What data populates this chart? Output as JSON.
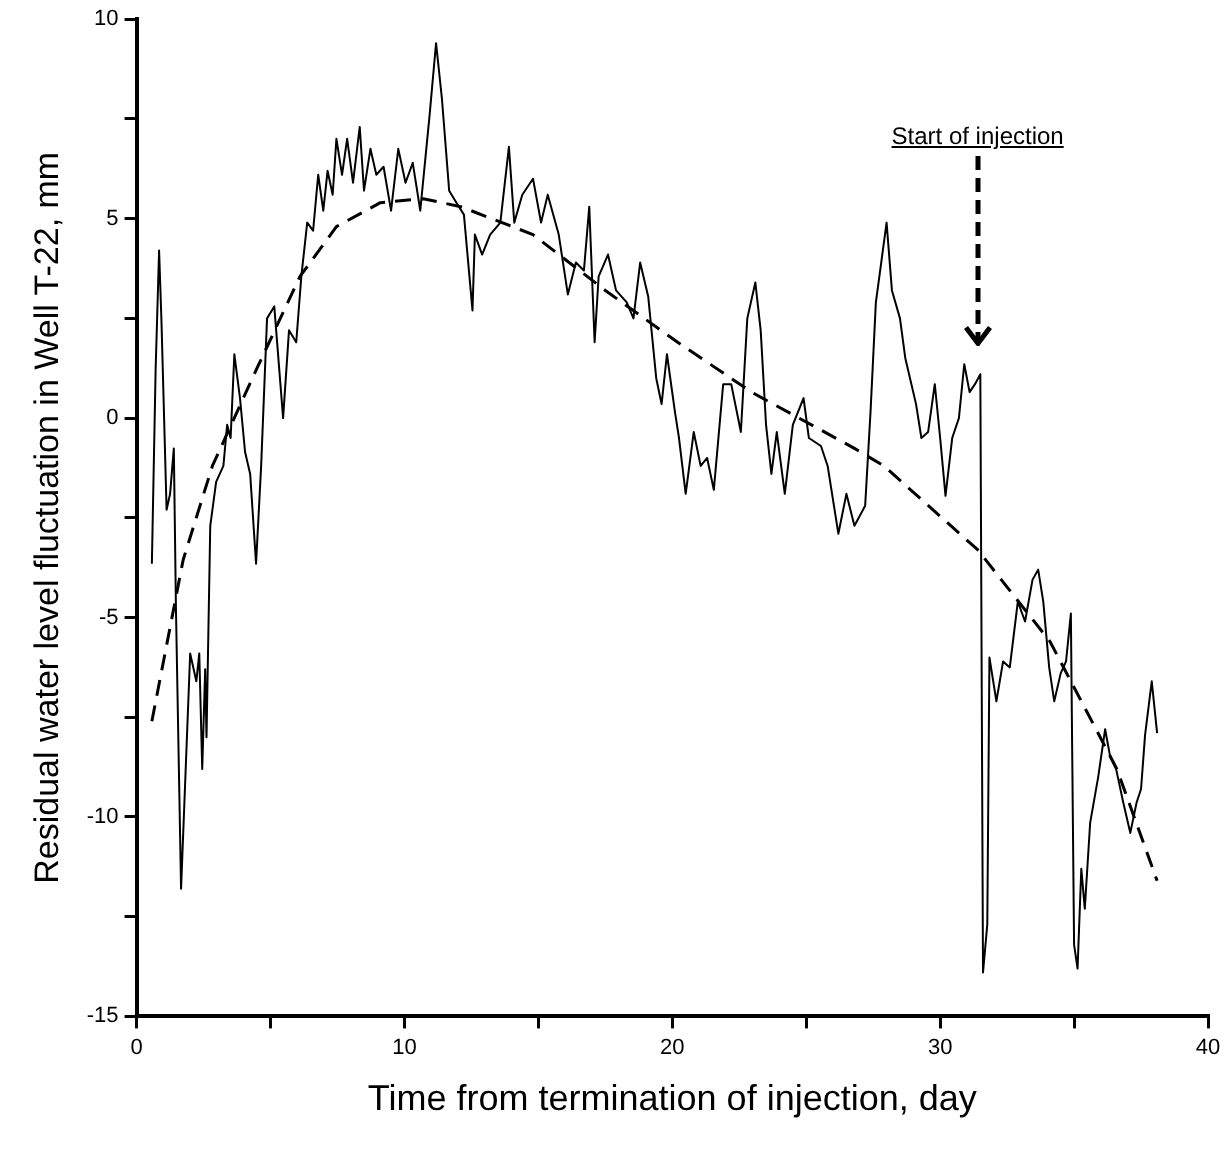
{
  "chart_data": {
    "type": "line",
    "xlabel": "Time from termination of injection, day",
    "ylabel": "Residual water level fluctuation in Well T-22, mm",
    "xlim": [
      0,
      40
    ],
    "ylim": [
      -15,
      10
    ],
    "xticks": [
      0,
      {
        "value": 5,
        "label": null
      },
      10,
      {
        "value": 15,
        "label": null
      },
      20,
      {
        "value": 25,
        "label": null
      },
      30,
      {
        "value": 35,
        "label": null
      },
      40
    ],
    "yticks": [
      -15,
      {
        "value": -12.5,
        "label": null
      },
      -10,
      {
        "value": -7.5,
        "label": null
      },
      -5,
      {
        "value": -2.5,
        "label": null
      },
      0,
      {
        "value": 2.5,
        "label": null
      },
      5,
      {
        "value": 7.5,
        "label": null
      },
      10
    ],
    "grid": false,
    "legend": false,
    "marker": "none",
    "annotations": [
      "Start of injection"
    ],
    "series": [
      {
        "color": "#000000",
        "line_style": "solid",
        "x": [
          0.57,
          0.71,
          0.84,
          0.93,
          1.12,
          1.25,
          1.39,
          1.47,
          1.66,
          2.0,
          2.23,
          2.34,
          2.45,
          2.56,
          2.61,
          2.75,
          2.97,
          3.24,
          3.38,
          3.51,
          3.65,
          3.86,
          4.05,
          4.24,
          4.46,
          4.65,
          4.87,
          5.14,
          5.47,
          5.69,
          5.96,
          6.15,
          6.37,
          6.59,
          6.78,
          6.97,
          7.13,
          7.32,
          7.46,
          7.67,
          7.86,
          8.08,
          8.33,
          8.49,
          8.73,
          8.95,
          9.22,
          9.5,
          9.77,
          10.04,
          10.31,
          10.59,
          10.94,
          11.18,
          11.4,
          11.67,
          11.94,
          12.22,
          12.54,
          12.63,
          12.9,
          13.2,
          13.58,
          13.9,
          14.1,
          14.4,
          14.8,
          15.1,
          15.35,
          15.76,
          16.1,
          16.4,
          16.7,
          16.9,
          17.1,
          17.25,
          17.6,
          17.9,
          18.3,
          18.55,
          18.8,
          19.1,
          19.4,
          19.6,
          19.8,
          20.1,
          20.25,
          20.5,
          20.8,
          21.06,
          21.3,
          21.55,
          21.9,
          22.2,
          22.56,
          22.8,
          23.1,
          23.3,
          23.5,
          23.7,
          23.9,
          24.2,
          24.5,
          24.9,
          25.1,
          25.55,
          25.8,
          26.2,
          26.5,
          26.8,
          27.2,
          27.4,
          27.6,
          27.8,
          28.0,
          28.2,
          28.5,
          28.7,
          29.1,
          29.3,
          29.55,
          29.8,
          30.0,
          30.2,
          30.45,
          30.7,
          30.9,
          31.1,
          31.3,
          31.5,
          31.6,
          31.76,
          31.84,
          32.1,
          32.35,
          32.6,
          32.9,
          33.17,
          33.45,
          33.66,
          33.85,
          34.07,
          34.26,
          34.5,
          34.7,
          34.88,
          35.0,
          35.13,
          35.27,
          35.4,
          35.6,
          35.9,
          36.16,
          36.35,
          36.57,
          36.84,
          37.1,
          37.33,
          37.5,
          37.65,
          37.9,
          38.1
        ],
        "values": [
          -3.65,
          1.2,
          4.2,
          2.4,
          -2.3,
          -1.9,
          -0.76,
          -4.8,
          -11.8,
          -5.9,
          -6.6,
          -5.9,
          -8.8,
          -6.3,
          -8.0,
          -2.7,
          -1.6,
          -1.2,
          -0.17,
          -0.5,
          1.6,
          0.5,
          -0.85,
          -1.4,
          -3.65,
          -1.2,
          2.5,
          2.8,
          0,
          2.2,
          1.9,
          3.55,
          4.9,
          4.7,
          6.1,
          5.2,
          6.2,
          5.6,
          7.0,
          6.1,
          7.0,
          5.9,
          7.3,
          5.7,
          6.75,
          6.1,
          6.3,
          5.2,
          6.75,
          5.9,
          6.4,
          5.2,
          7.6,
          9.4,
          8.0,
          5.7,
          5.4,
          5.1,
          2.7,
          4.6,
          4.1,
          4.6,
          4.9,
          6.8,
          4.9,
          5.6,
          6.0,
          4.9,
          5.6,
          4.6,
          3.1,
          3.9,
          3.7,
          5.3,
          1.9,
          3.55,
          4.1,
          3.2,
          2.9,
          2.5,
          3.9,
          3.05,
          1.0,
          0.35,
          1.6,
          0.15,
          -0.5,
          -1.9,
          -0.35,
          -1.2,
          -1.0,
          -1.8,
          0.85,
          0.85,
          -0.35,
          2.5,
          3.4,
          2.2,
          -0.17,
          -1.4,
          -0.35,
          -1.9,
          -0.17,
          0.5,
          -0.5,
          -0.7,
          -1.2,
          -2.9,
          -1.9,
          -2.7,
          -2.2,
          0.15,
          2.9,
          3.9,
          4.9,
          3.2,
          2.5,
          1.5,
          0.35,
          -0.5,
          -0.35,
          0.85,
          -0.5,
          -1.95,
          -0.5,
          0,
          1.35,
          0.65,
          0.85,
          1.1,
          -13.9,
          -12.7,
          -6.0,
          -7.1,
          -6.1,
          -6.25,
          -4.6,
          -5.1,
          -4.05,
          -3.8,
          -4.6,
          -6.25,
          -7.1,
          -6.4,
          -6.1,
          -4.9,
          -13.2,
          -13.8,
          -11.3,
          -12.3,
          -10.15,
          -9.0,
          -7.8,
          -8.5,
          -8.8,
          -9.65,
          -10.4,
          -9.65,
          -9.3,
          -7.95,
          -6.6,
          -7.9
        ]
      },
      {
        "color": "#000000",
        "line_style": "dashed",
        "x": [
          0.57,
          1.74,
          2.83,
          4.46,
          6.1,
          7.46,
          9.1,
          10.7,
          12.1,
          14.8,
          17.5,
          20.2,
          22.96,
          26.8,
          27.9,
          31.4,
          34.1,
          36.6,
          38.1
        ],
        "values": [
          -7.6,
          -3.55,
          -1.2,
          1.2,
          3.55,
          4.8,
          5.4,
          5.5,
          5.3,
          4.6,
          3.2,
          1.9,
          0.65,
          -0.76,
          -1.2,
          -3.3,
          -5.6,
          -8.8,
          -11.6
        ]
      }
    ]
  }
}
